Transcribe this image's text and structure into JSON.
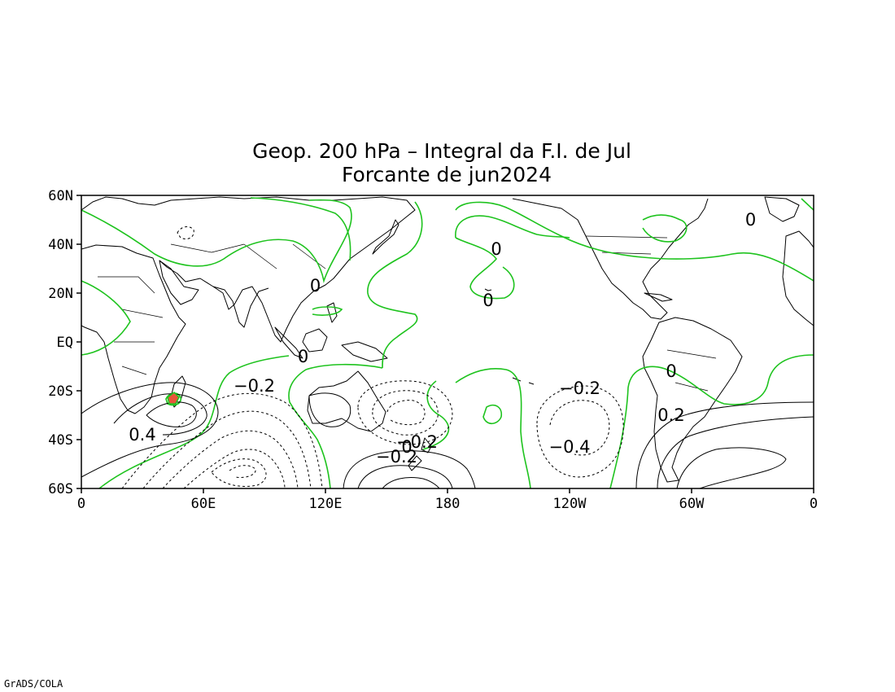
{
  "title": {
    "line1": "Geop. 200 hPa – Integral da F.I. de Jul",
    "line2": "Forcante de jun2024"
  },
  "credit": "GrADS/COLA",
  "colors": {
    "zero_contour": "#1ec31e",
    "max_fill": "#e8553a",
    "frame": "#000000"
  },
  "chart_data": {
    "type": "contour-map",
    "projection": "latlon",
    "lon_range": [
      0,
      360
    ],
    "lat_range": [
      -60,
      60
    ],
    "y_ticks": [
      {
        "lat": 60,
        "label": "60N"
      },
      {
        "lat": 40,
        "label": "40N"
      },
      {
        "lat": 20,
        "label": "20N"
      },
      {
        "lat": 0,
        "label": "EQ"
      },
      {
        "lat": -20,
        "label": "20S"
      },
      {
        "lat": -40,
        "label": "40S"
      },
      {
        "lat": -60,
        "label": "60S"
      }
    ],
    "x_ticks": [
      {
        "lon": 0,
        "label": "0"
      },
      {
        "lon": 60,
        "label": "60E"
      },
      {
        "lon": 120,
        "label": "120E"
      },
      {
        "lon": 180,
        "label": "180"
      },
      {
        "lon": 240,
        "label": "120W"
      },
      {
        "lon": 300,
        "label": "60W"
      },
      {
        "lon": 360,
        "label": "0"
      }
    ],
    "contour_interval": 0.1,
    "contour_labels": [
      {
        "text": "0",
        "lon": 115,
        "lat": 23
      },
      {
        "text": "0",
        "lon": 109,
        "lat": -6
      },
      {
        "text": "0",
        "lon": 204,
        "lat": 38
      },
      {
        "text": "0",
        "lon": 200,
        "lat": 17
      },
      {
        "text": "0",
        "lon": 290,
        "lat": -12
      },
      {
        "text": "0",
        "lon": 329,
        "lat": 50
      },
      {
        "text": "−0.2",
        "lon": 85,
        "lat": -18
      },
      {
        "text": "−0.2",
        "lon": 245,
        "lat": -19
      },
      {
        "text": "−0.4",
        "lon": 240,
        "lat": -43
      },
      {
        "text": "0.4",
        "lon": 30,
        "lat": -38
      },
      {
        "text": "0.2",
        "lon": 290,
        "lat": -30
      },
      {
        "text": "−0.2",
        "lon": 165,
        "lat": -41
      },
      {
        "text": "−0.2",
        "lon": 155,
        "lat": -47
      },
      {
        "text": "0",
        "lon": 160,
        "lat": -43
      }
    ],
    "maximum_marker": {
      "lon": 45,
      "lat": -23
    }
  }
}
